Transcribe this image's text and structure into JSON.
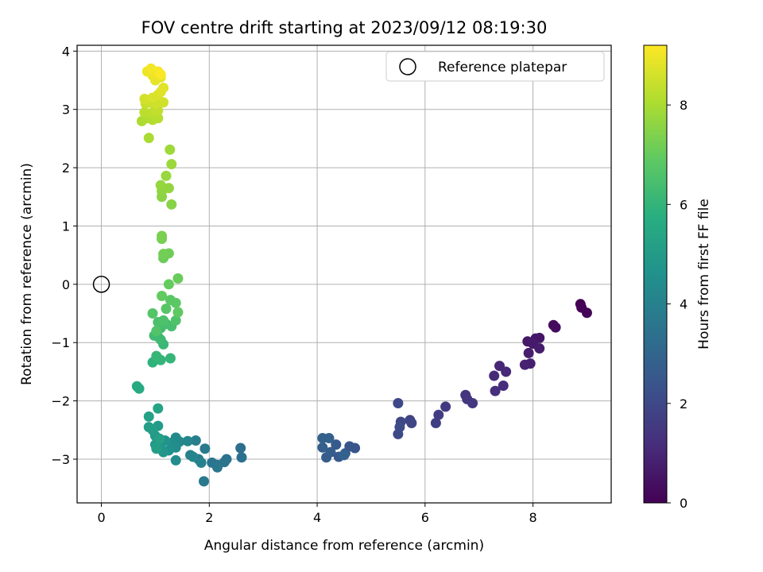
{
  "chart_data": {
    "type": "scatter",
    "title": "FOV centre drift starting at 2023/09/12 08:19:30",
    "xlabel": "Angular distance from reference (arcmin)",
    "ylabel": "Rotation from reference (arcmin)",
    "colorbar_label": "Hours from first FF file",
    "xlim": [
      -0.45,
      9.45
    ],
    "ylim": [
      -3.75,
      4.1
    ],
    "x_ticks": [
      0,
      2,
      4,
      6,
      8
    ],
    "y_ticks": [
      -3,
      -2,
      -1,
      0,
      1,
      2,
      3,
      4
    ],
    "colorbar_range": [
      0,
      9.2
    ],
    "colorbar_ticks": [
      0,
      2,
      4,
      6,
      8
    ],
    "colormap": "viridis",
    "grid": true,
    "legend_position": "top-right",
    "reference": {
      "name": "Reference platepar",
      "x": 0,
      "y": 0
    },
    "points": [
      {
        "x": 8.88,
        "y": -0.34,
        "t": 0.0
      },
      {
        "x": 8.9,
        "y": -0.4,
        "t": 0.05
      },
      {
        "x": 9.0,
        "y": -0.49,
        "t": 0.1
      },
      {
        "x": 8.38,
        "y": -0.7,
        "t": 0.25
      },
      {
        "x": 8.42,
        "y": -0.74,
        "t": 0.3
      },
      {
        "x": 8.05,
        "y": -0.93,
        "t": 0.5
      },
      {
        "x": 8.12,
        "y": -0.92,
        "t": 0.55
      },
      {
        "x": 7.9,
        "y": -0.98,
        "t": 0.6
      },
      {
        "x": 8.0,
        "y": -1.02,
        "t": 0.65
      },
      {
        "x": 8.12,
        "y": -1.1,
        "t": 0.7
      },
      {
        "x": 7.92,
        "y": -1.18,
        "t": 0.75
      },
      {
        "x": 7.95,
        "y": -1.36,
        "t": 0.8
      },
      {
        "x": 7.85,
        "y": -1.38,
        "t": 0.85
      },
      {
        "x": 7.38,
        "y": -1.4,
        "t": 1.0
      },
      {
        "x": 7.5,
        "y": -1.5,
        "t": 1.05
      },
      {
        "x": 7.28,
        "y": -1.57,
        "t": 1.1
      },
      {
        "x": 7.45,
        "y": -1.74,
        "t": 1.15
      },
      {
        "x": 7.3,
        "y": -1.83,
        "t": 1.2
      },
      {
        "x": 6.75,
        "y": -1.9,
        "t": 1.4
      },
      {
        "x": 6.78,
        "y": -1.97,
        "t": 1.45
      },
      {
        "x": 6.88,
        "y": -2.04,
        "t": 1.5
      },
      {
        "x": 6.38,
        "y": -2.1,
        "t": 1.6
      },
      {
        "x": 6.25,
        "y": -2.24,
        "t": 1.65
      },
      {
        "x": 6.2,
        "y": -2.38,
        "t": 1.7
      },
      {
        "x": 5.72,
        "y": -2.33,
        "t": 1.85
      },
      {
        "x": 5.75,
        "y": -2.38,
        "t": 1.9
      },
      {
        "x": 5.55,
        "y": -2.36,
        "t": 1.95
      },
      {
        "x": 5.5,
        "y": -2.04,
        "t": 2.0
      },
      {
        "x": 5.5,
        "y": -2.57,
        "t": 2.05
      },
      {
        "x": 5.53,
        "y": -2.45,
        "t": 2.1
      },
      {
        "x": 4.7,
        "y": -2.81,
        "t": 2.4
      },
      {
        "x": 4.6,
        "y": -2.78,
        "t": 2.45
      },
      {
        "x": 4.52,
        "y": -2.9,
        "t": 2.5
      },
      {
        "x": 4.4,
        "y": -2.96,
        "t": 2.55
      },
      {
        "x": 4.35,
        "y": -2.75,
        "t": 2.6
      },
      {
        "x": 4.25,
        "y": -2.88,
        "t": 2.65
      },
      {
        "x": 4.17,
        "y": -2.97,
        "t": 2.7
      },
      {
        "x": 4.1,
        "y": -2.8,
        "t": 2.75
      },
      {
        "x": 4.1,
        "y": -2.64,
        "t": 2.8
      },
      {
        "x": 4.22,
        "y": -2.64,
        "t": 2.85
      },
      {
        "x": 4.5,
        "y": -2.93,
        "t": 2.9
      },
      {
        "x": 2.58,
        "y": -2.81,
        "t": 3.3
      },
      {
        "x": 2.6,
        "y": -2.97,
        "t": 3.35
      },
      {
        "x": 2.32,
        "y": -3.0,
        "t": 3.45
      },
      {
        "x": 2.28,
        "y": -3.05,
        "t": 3.5
      },
      {
        "x": 2.15,
        "y": -3.1,
        "t": 3.55
      },
      {
        "x": 2.05,
        "y": -3.06,
        "t": 3.6
      },
      {
        "x": 2.15,
        "y": -3.14,
        "t": 3.65
      },
      {
        "x": 1.9,
        "y": -3.38,
        "t": 3.7
      },
      {
        "x": 1.92,
        "y": -2.82,
        "t": 3.75
      },
      {
        "x": 1.8,
        "y": -3.0,
        "t": 3.8
      },
      {
        "x": 1.75,
        "y": -2.68,
        "t": 3.9
      },
      {
        "x": 1.65,
        "y": -2.93,
        "t": 4.0
      },
      {
        "x": 1.85,
        "y": -3.06,
        "t": 4.05
      },
      {
        "x": 1.7,
        "y": -2.96,
        "t": 4.1
      },
      {
        "x": 1.6,
        "y": -2.69,
        "t": 4.2
      },
      {
        "x": 1.45,
        "y": -2.7,
        "t": 4.3
      },
      {
        "x": 1.38,
        "y": -2.63,
        "t": 4.35
      },
      {
        "x": 1.38,
        "y": -2.8,
        "t": 4.4
      },
      {
        "x": 1.38,
        "y": -3.02,
        "t": 4.45
      },
      {
        "x": 1.3,
        "y": -2.72,
        "t": 4.5
      },
      {
        "x": 1.25,
        "y": -2.85,
        "t": 4.6
      },
      {
        "x": 1.18,
        "y": -2.68,
        "t": 4.7
      },
      {
        "x": 1.12,
        "y": -2.72,
        "t": 4.75
      },
      {
        "x": 1.15,
        "y": -2.88,
        "t": 4.8
      },
      {
        "x": 1.05,
        "y": -2.8,
        "t": 4.85
      },
      {
        "x": 1.0,
        "y": -2.75,
        "t": 4.9
      },
      {
        "x": 1.0,
        "y": -2.6,
        "t": 4.95
      },
      {
        "x": 1.05,
        "y": -2.43,
        "t": 5.0
      },
      {
        "x": 0.95,
        "y": -2.5,
        "t": 5.05
      },
      {
        "x": 0.88,
        "y": -2.45,
        "t": 5.1
      },
      {
        "x": 1.02,
        "y": -2.82,
        "t": 5.15
      },
      {
        "x": 1.08,
        "y": -2.65,
        "t": 5.2
      },
      {
        "x": 0.88,
        "y": -2.27,
        "t": 5.25
      },
      {
        "x": 1.05,
        "y": -2.13,
        "t": 5.3
      },
      {
        "x": 0.66,
        "y": -1.75,
        "t": 5.55
      },
      {
        "x": 0.7,
        "y": -1.79,
        "t": 5.6
      },
      {
        "x": 0.95,
        "y": -1.34,
        "t": 5.9
      },
      {
        "x": 1.05,
        "y": -1.27,
        "t": 5.95
      },
      {
        "x": 1.1,
        "y": -1.3,
        "t": 6.0
      },
      {
        "x": 1.28,
        "y": -1.27,
        "t": 6.05
      },
      {
        "x": 1.02,
        "y": -1.23,
        "t": 6.1
      },
      {
        "x": 1.15,
        "y": -1.03,
        "t": 6.15
      },
      {
        "x": 1.1,
        "y": -0.95,
        "t": 6.2
      },
      {
        "x": 1.05,
        "y": -0.9,
        "t": 6.25
      },
      {
        "x": 0.98,
        "y": -0.88,
        "t": 6.3
      },
      {
        "x": 1.1,
        "y": -0.75,
        "t": 6.35
      },
      {
        "x": 1.2,
        "y": -0.68,
        "t": 6.4
      },
      {
        "x": 1.3,
        "y": -0.72,
        "t": 6.45
      },
      {
        "x": 1.05,
        "y": -0.65,
        "t": 6.5
      },
      {
        "x": 1.15,
        "y": -0.62,
        "t": 6.55
      },
      {
        "x": 1.38,
        "y": -0.62,
        "t": 6.6
      },
      {
        "x": 1.02,
        "y": -0.8,
        "t": 6.65
      },
      {
        "x": 0.95,
        "y": -0.5,
        "t": 6.7
      },
      {
        "x": 1.2,
        "y": -0.42,
        "t": 6.75
      },
      {
        "x": 1.28,
        "y": -0.27,
        "t": 6.8
      },
      {
        "x": 1.38,
        "y": -0.32,
        "t": 6.85
      },
      {
        "x": 1.42,
        "y": -0.48,
        "t": 6.9
      },
      {
        "x": 1.12,
        "y": -0.2,
        "t": 6.95
      },
      {
        "x": 1.25,
        "y": 0.0,
        "t": 7.0
      },
      {
        "x": 1.42,
        "y": 0.1,
        "t": 7.05
      },
      {
        "x": 1.15,
        "y": 0.45,
        "t": 7.1
      },
      {
        "x": 1.25,
        "y": 0.53,
        "t": 7.15
      },
      {
        "x": 1.15,
        "y": 0.52,
        "t": 7.2
      },
      {
        "x": 1.12,
        "y": 0.78,
        "t": 7.25
      },
      {
        "x": 1.12,
        "y": 0.83,
        "t": 7.3
      },
      {
        "x": 1.3,
        "y": 1.37,
        "t": 7.5
      },
      {
        "x": 1.12,
        "y": 1.5,
        "t": 7.55
      },
      {
        "x": 1.12,
        "y": 1.6,
        "t": 7.6
      },
      {
        "x": 1.25,
        "y": 1.65,
        "t": 7.65
      },
      {
        "x": 1.1,
        "y": 1.7,
        "t": 7.7
      },
      {
        "x": 1.2,
        "y": 1.86,
        "t": 7.75
      },
      {
        "x": 1.3,
        "y": 2.06,
        "t": 7.8
      },
      {
        "x": 1.27,
        "y": 2.31,
        "t": 7.85
      },
      {
        "x": 0.88,
        "y": 2.51,
        "t": 8.0
      },
      {
        "x": 0.75,
        "y": 2.8,
        "t": 8.05
      },
      {
        "x": 0.85,
        "y": 2.85,
        "t": 8.1
      },
      {
        "x": 0.95,
        "y": 2.82,
        "t": 8.15
      },
      {
        "x": 1.05,
        "y": 2.85,
        "t": 8.2
      },
      {
        "x": 0.8,
        "y": 2.95,
        "t": 8.25
      },
      {
        "x": 0.95,
        "y": 2.95,
        "t": 8.3
      },
      {
        "x": 1.05,
        "y": 2.98,
        "t": 8.35
      },
      {
        "x": 0.82,
        "y": 3.1,
        "t": 8.4
      },
      {
        "x": 0.9,
        "y": 3.12,
        "t": 8.45
      },
      {
        "x": 1.0,
        "y": 3.1,
        "t": 8.5
      },
      {
        "x": 1.15,
        "y": 3.12,
        "t": 8.55
      },
      {
        "x": 0.8,
        "y": 3.18,
        "t": 8.6
      },
      {
        "x": 0.95,
        "y": 3.2,
        "t": 8.65
      },
      {
        "x": 1.05,
        "y": 3.25,
        "t": 8.7
      },
      {
        "x": 1.1,
        "y": 3.3,
        "t": 8.75
      },
      {
        "x": 1.15,
        "y": 3.37,
        "t": 8.8
      },
      {
        "x": 1.0,
        "y": 3.5,
        "t": 8.85
      },
      {
        "x": 1.1,
        "y": 3.55,
        "t": 8.9
      },
      {
        "x": 0.95,
        "y": 3.58,
        "t": 8.95
      },
      {
        "x": 0.85,
        "y": 3.65,
        "t": 9.0
      },
      {
        "x": 0.92,
        "y": 3.7,
        "t": 9.05
      },
      {
        "x": 1.05,
        "y": 3.65,
        "t": 9.1
      },
      {
        "x": 1.1,
        "y": 3.6,
        "t": 9.15
      }
    ]
  }
}
